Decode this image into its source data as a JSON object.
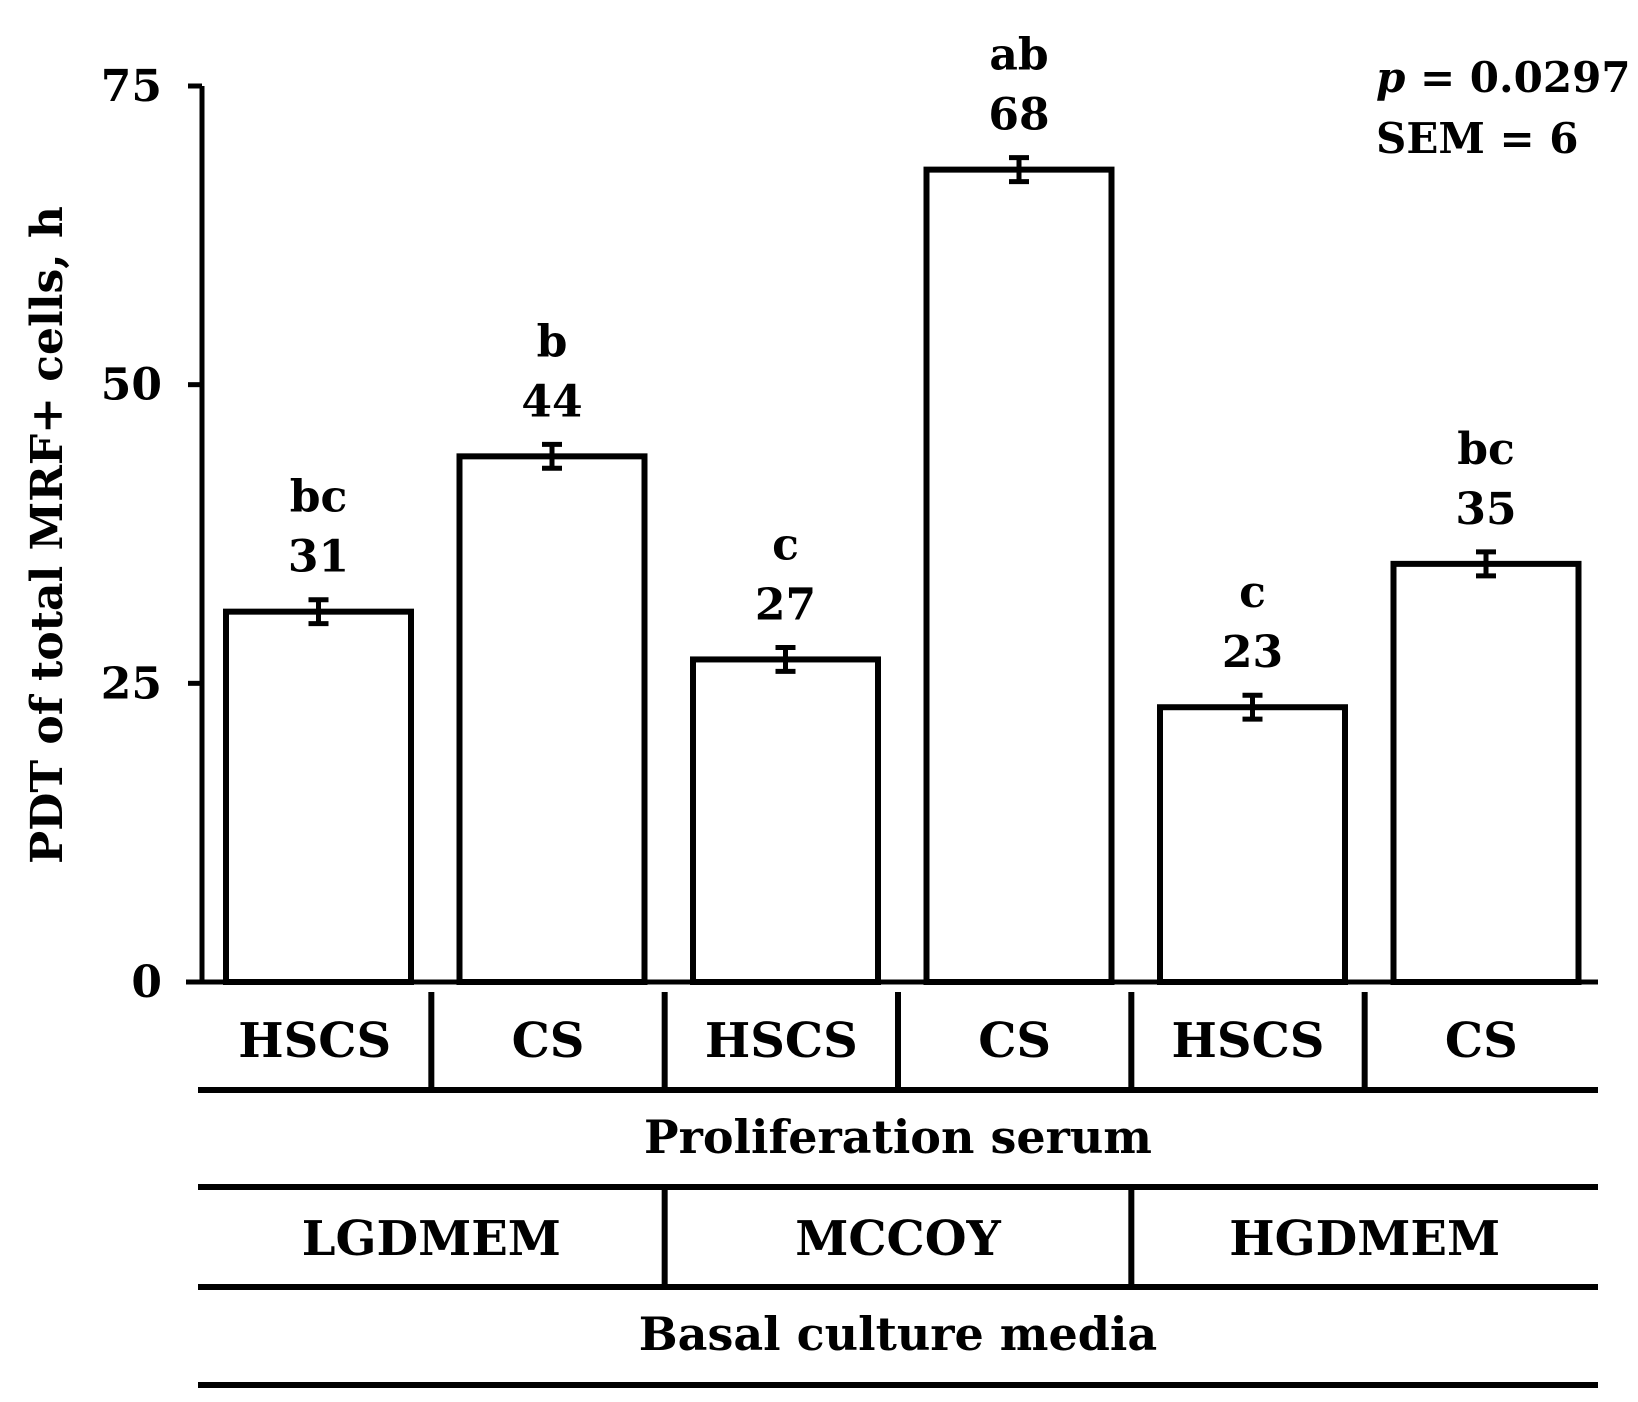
{
  "chart_data": {
    "type": "bar",
    "ylabel": "PDT of total MRF+ cells, h",
    "ylim": [
      0,
      75
    ],
    "yticks": [
      0,
      25,
      50,
      75
    ],
    "grid": false,
    "categories": [
      "HSCS",
      "CS",
      "HSCS",
      "CS",
      "HSCS",
      "CS"
    ],
    "values": [
      31,
      44,
      27,
      68,
      23,
      35
    ],
    "error": [
      1,
      1,
      1,
      1,
      1,
      1
    ],
    "value_labels": [
      "31",
      "44",
      "27",
      "68",
      "23",
      "35"
    ],
    "letters": [
      "bc",
      "b",
      "c",
      "ab",
      "c",
      "bc"
    ],
    "proliferation_serum_label": "Proliferation serum",
    "basal_media": [
      "LGDMEM",
      "MCCOY",
      "HGDMEM"
    ],
    "basal_media_label": "Basal culture media",
    "stats": {
      "p_symbol": "p",
      "p_text": " = 0.0297",
      "sem_text": "SEM = 6"
    },
    "colors": {
      "bar_fill": "#ffffff",
      "stroke": "#000000"
    }
  }
}
